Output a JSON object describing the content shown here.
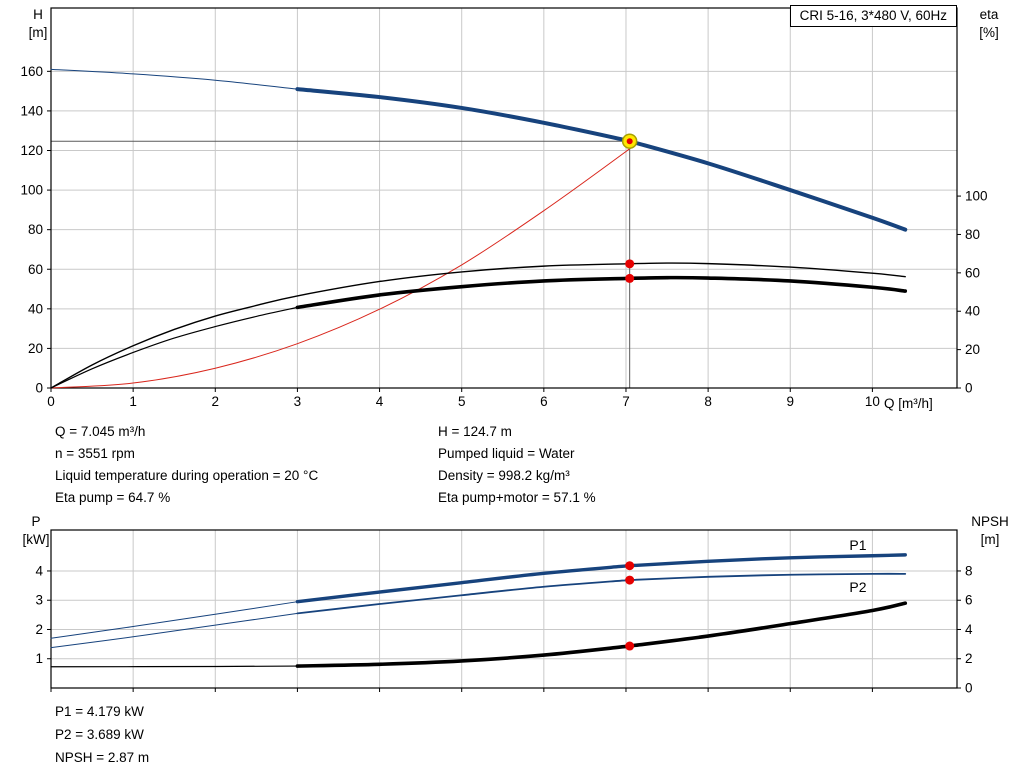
{
  "title_box": {
    "text": "CRI 5-16, 3*480 V, 60Hz"
  },
  "axis_titles": {
    "top_left_1": "H",
    "top_left_2": "[m]",
    "top_right_1": "eta",
    "top_right_2": "[%]",
    "x_label": "Q [m³/h]",
    "bottom_left_1": "P",
    "bottom_left_2": "[kW]",
    "bottom_right_1": "NPSH",
    "bottom_right_2": "[m]"
  },
  "annotations": {
    "top_left": [
      "Q = 7.045 m³/h",
      "n = 3551 rpm",
      "Liquid temperature during operation = 20 °C",
      "Eta pump = 64.7 %"
    ],
    "top_right": [
      "H = 124.7 m",
      "Pumped liquid = Water",
      "Density = 998.2 kg/m³",
      "Eta pump+motor = 57.1 %"
    ],
    "bottom": [
      "P1 = 4.179 kW",
      "P2 = 3.689 kW",
      "NPSH = 2.87 m"
    ]
  },
  "colors": {
    "pump_blue": "#17437d",
    "curve_red": "#d9261c",
    "black": "#000000",
    "grid": "#c9c9c9",
    "crosshair": "#5a5a5a",
    "dot_red": "#e60000",
    "duty_yellow": "#ffe600",
    "duty_ring": "#a6a000"
  },
  "chart_data": [
    {
      "id": "qh-eta-chart",
      "type": "line",
      "title": "CRI 5-16, 3*480 V, 60Hz",
      "x_axis": {
        "label": "Q [m³/h]",
        "min": 0,
        "max": 11.03,
        "ticks": [
          0,
          1,
          2,
          3,
          4,
          5,
          6,
          7,
          8,
          9,
          10
        ],
        "show_tick_labels": true
      },
      "y_left": {
        "label": "H [m]",
        "min": 0,
        "max": 192,
        "ticks": [
          0,
          20,
          40,
          60,
          80,
          100,
          120,
          140,
          160
        ]
      },
      "y_right": {
        "label": "eta [%]",
        "min": 0,
        "max": 198,
        "ticks": [
          0,
          20,
          40,
          60,
          80,
          100
        ]
      },
      "series": [
        {
          "name": "pump-curve-extension",
          "axis": "left",
          "color": "#17437d",
          "width": 1,
          "points": [
            [
              0,
              161
            ],
            [
              1,
              158.7
            ],
            [
              2,
              155.5
            ],
            [
              3,
              151
            ]
          ]
        },
        {
          "name": "pump-curve",
          "axis": "left",
          "color": "#17437d",
          "width": 4,
          "points": [
            [
              3,
              151
            ],
            [
              4,
              147
            ],
            [
              5,
              141.5
            ],
            [
              6,
              134
            ],
            [
              7,
              125.2
            ],
            [
              7.045,
              124.7
            ],
            [
              8,
              113.5
            ],
            [
              9,
              100
            ],
            [
              10,
              86
            ],
            [
              10.4,
              80
            ]
          ]
        },
        {
          "name": "system-curve",
          "axis": "left",
          "color": "#d9261c",
          "width": 1,
          "points": [
            [
              0,
              0
            ],
            [
              1,
              2.5
            ],
            [
              2,
              10
            ],
            [
              3,
              22.4
            ],
            [
              4,
              39.8
            ],
            [
              5,
              62.2
            ],
            [
              6,
              89.6
            ],
            [
              7,
              119.5
            ],
            [
              7.045,
              121.5
            ]
          ]
        },
        {
          "name": "eta-pump-curve",
          "axis": "right",
          "color": "#000000",
          "width": 1.4,
          "points": [
            [
              0,
              0
            ],
            [
              0.5,
              12
            ],
            [
              1,
              22
            ],
            [
              1.5,
              30.5
            ],
            [
              2,
              37.5
            ],
            [
              2.5,
              43
            ],
            [
              3,
              48
            ],
            [
              4,
              55.5
            ],
            [
              5,
              60.5
            ],
            [
              6,
              63.5
            ],
            [
              7,
              64.7
            ],
            [
              7.5,
              65.1
            ],
            [
              8,
              64.8
            ],
            [
              9,
              63
            ],
            [
              10,
              59.8
            ],
            [
              10.4,
              58
            ]
          ]
        },
        {
          "name": "eta-pump-motor-extension",
          "axis": "right",
          "color": "#000000",
          "width": 1.2,
          "points": [
            [
              0,
              0
            ],
            [
              0.5,
              10
            ],
            [
              1,
              18.5
            ],
            [
              1.5,
              26
            ],
            [
              2,
              32
            ],
            [
              2.5,
              37.3
            ],
            [
              3,
              42
            ]
          ]
        },
        {
          "name": "eta-pump-motor-curve",
          "axis": "right",
          "color": "#000000",
          "width": 3.6,
          "points": [
            [
              3,
              42
            ],
            [
              4,
              48.5
            ],
            [
              5,
              52.8
            ],
            [
              6,
              55.8
            ],
            [
              7,
              57.1
            ],
            [
              7.5,
              57.5
            ],
            [
              8,
              57.3
            ],
            [
              9,
              55.8
            ],
            [
              10,
              52.5
            ],
            [
              10.4,
              50.5
            ]
          ]
        }
      ],
      "crosshair": {
        "x": 7.045,
        "y": 124.7,
        "axis": "left"
      },
      "dots": [
        {
          "x": 7.045,
          "y": 64.7,
          "axis": "right"
        },
        {
          "x": 7.045,
          "y": 57.1,
          "axis": "right"
        }
      ],
      "duty_point": {
        "x": 7.045,
        "y": 124.7,
        "axis": "left"
      }
    },
    {
      "id": "power-npsh-chart",
      "type": "line",
      "x_axis": {
        "label": "",
        "min": 0,
        "max": 11.03,
        "ticks": [
          0,
          1,
          2,
          3,
          4,
          5,
          6,
          7,
          8,
          9,
          10
        ],
        "show_tick_labels": false
      },
      "y_left": {
        "label": "P [kW]",
        "min": 0,
        "max": 5.4,
        "ticks": [
          1,
          2,
          3,
          4
        ]
      },
      "y_right": {
        "label": "NPSH [m]",
        "min": 0,
        "max": 10.8,
        "ticks": [
          0,
          2,
          4,
          6,
          8
        ]
      },
      "series": [
        {
          "name": "p1-extension",
          "axis": "left",
          "color": "#17437d",
          "width": 1,
          "points": [
            [
              0,
              1.7
            ],
            [
              1,
              2.1
            ],
            [
              2,
              2.52
            ],
            [
              3,
              2.95
            ]
          ]
        },
        {
          "name": "p1-curve",
          "axis": "left",
          "color": "#17437d",
          "width": 3.4,
          "points": [
            [
              3,
              2.95
            ],
            [
              4,
              3.28
            ],
            [
              5,
              3.6
            ],
            [
              6,
              3.92
            ],
            [
              7,
              4.17
            ],
            [
              7.045,
              4.179
            ],
            [
              8,
              4.33
            ],
            [
              9,
              4.45
            ],
            [
              10,
              4.52
            ],
            [
              10.4,
              4.55
            ]
          ]
        },
        {
          "name": "p2-extension",
          "axis": "left",
          "color": "#17437d",
          "width": 1,
          "points": [
            [
              0,
              1.38
            ],
            [
              1,
              1.75
            ],
            [
              2,
              2.15
            ],
            [
              3,
              2.55
            ]
          ]
        },
        {
          "name": "p2-curve",
          "axis": "left",
          "color": "#17437d",
          "width": 1.8,
          "points": [
            [
              3,
              2.55
            ],
            [
              4,
              2.87
            ],
            [
              5,
              3.17
            ],
            [
              6,
              3.46
            ],
            [
              7,
              3.68
            ],
            [
              7.045,
              3.689
            ],
            [
              8,
              3.8
            ],
            [
              9,
              3.87
            ],
            [
              10,
              3.9
            ],
            [
              10.4,
              3.9
            ]
          ]
        },
        {
          "name": "npsh-extension",
          "axis": "right",
          "color": "#000000",
          "width": 1.2,
          "points": [
            [
              0,
              1.45
            ],
            [
              2,
              1.47
            ],
            [
              3,
              1.5
            ]
          ]
        },
        {
          "name": "npsh-curve",
          "axis": "right",
          "color": "#000000",
          "width": 3.6,
          "points": [
            [
              3,
              1.5
            ],
            [
              4,
              1.62
            ],
            [
              5,
              1.85
            ],
            [
              6,
              2.25
            ],
            [
              7,
              2.84
            ],
            [
              7.045,
              2.87
            ],
            [
              8,
              3.55
            ],
            [
              9,
              4.4
            ],
            [
              10,
              5.3
            ],
            [
              10.4,
              5.8
            ]
          ]
        }
      ],
      "dots": [
        {
          "x": 7.045,
          "y": 4.179,
          "axis": "left"
        },
        {
          "x": 7.045,
          "y": 3.689,
          "axis": "left"
        },
        {
          "x": 7.045,
          "y": 2.87,
          "axis": "right"
        }
      ],
      "labels": [
        {
          "text": "P1",
          "x": 9.72,
          "y": 4.72,
          "axis": "left",
          "color": "#17437d"
        },
        {
          "text": "P2",
          "x": 9.72,
          "y": 3.28,
          "axis": "left",
          "color": "#17437d"
        }
      ]
    }
  ]
}
